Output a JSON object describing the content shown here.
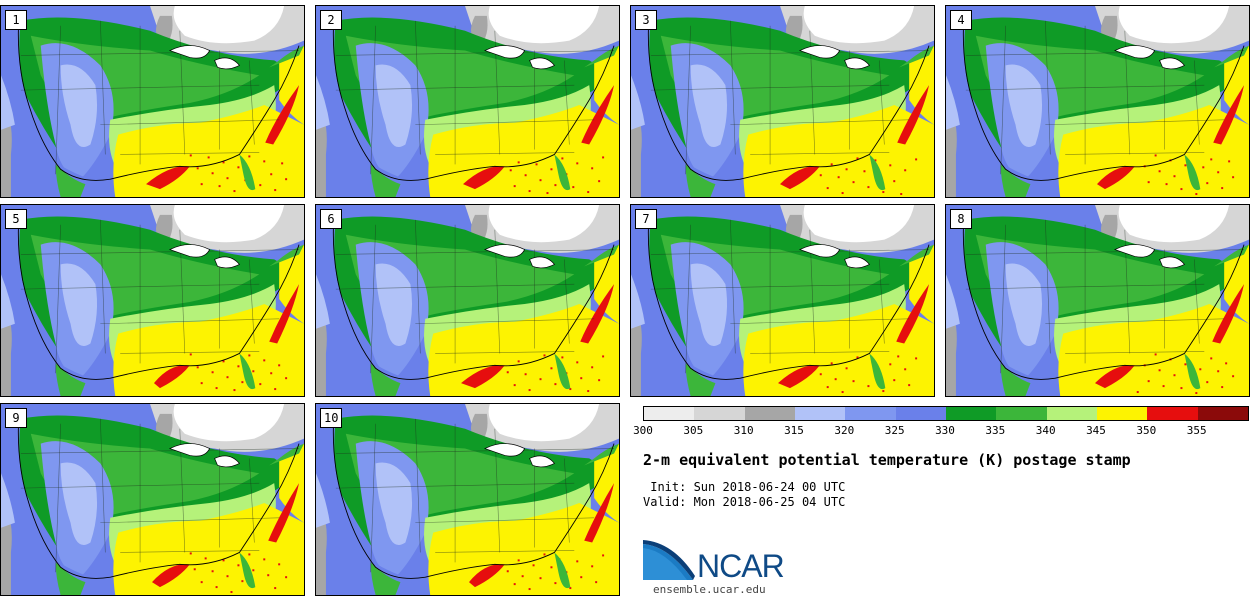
{
  "stamps": [
    {
      "label": "1"
    },
    {
      "label": "2"
    },
    {
      "label": "3"
    },
    {
      "label": "4"
    },
    {
      "label": "5"
    },
    {
      "label": "6"
    },
    {
      "label": "7"
    },
    {
      "label": "8"
    },
    {
      "label": "9"
    },
    {
      "label": "10"
    }
  ],
  "colorbar": {
    "ticks": [
      "300",
      "305",
      "310",
      "315",
      "320",
      "325",
      "330",
      "335",
      "340",
      "345",
      "350",
      "355"
    ],
    "colors": [
      "#ededed",
      "#d6d6d6",
      "#a6a6a6",
      "#b1c2f8",
      "#7f97f0",
      "#6a80ea",
      "#0f9b26",
      "#3cb63a",
      "#b5f27a",
      "#fdf301",
      "#e60e0e",
      "#8b0a0a"
    ]
  },
  "title": "2-m equivalent potential temperature (K) postage stamp",
  "init": " Init: Sun 2018-06-24 00 UTC",
  "valid": "Valid: Mon 2018-06-25 04 UTC",
  "logo": {
    "name": "NCAR",
    "url": "ensemble.ucar.edu"
  }
}
